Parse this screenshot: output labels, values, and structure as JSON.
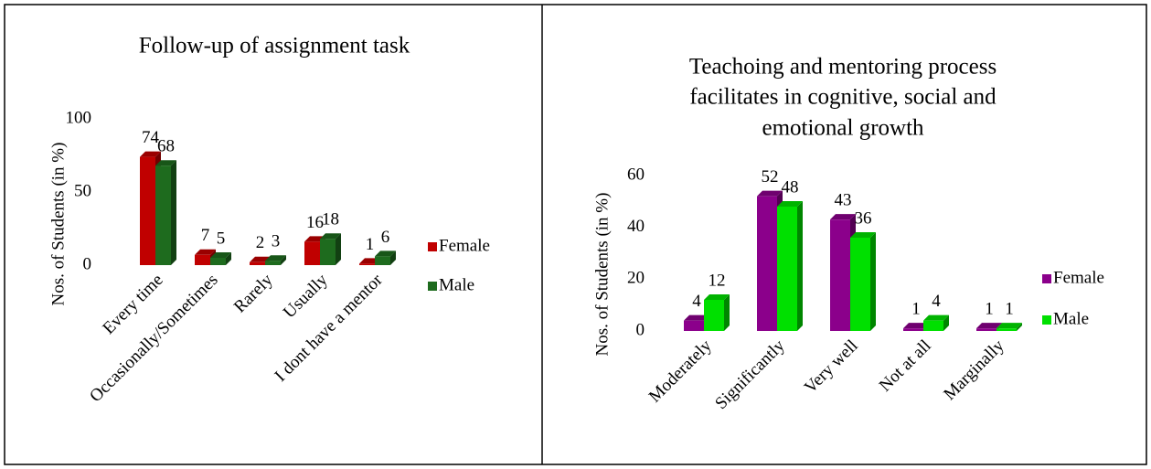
{
  "chart_data": [
    {
      "type": "bar",
      "title": [
        "Follow-up of assignment task"
      ],
      "y_label": "Nos. of Students (in %)",
      "categories": [
        "Every time",
        "Occasionally/Sometimes",
        "Rarely",
        "Usually",
        "I dont have a mentor"
      ],
      "series": [
        {
          "name": "Female",
          "color": "#c00000",
          "values": [
            74,
            7,
            2,
            16,
            1
          ]
        },
        {
          "name": "Male",
          "color": "#1e6b1e",
          "values": [
            68,
            5,
            3,
            18,
            6
          ]
        }
      ],
      "ylim": [
        0,
        100
      ],
      "yticks": [
        0,
        50,
        100
      ],
      "grid": false,
      "legend": "right"
    },
    {
      "type": "bar",
      "title": [
        "Teachoing and mentoring process",
        "facilitates in cognitive, social and",
        "emotional growth"
      ],
      "y_label": "Nos. of Students (in %)",
      "categories": [
        "Moderately",
        "Significantly",
        "Very well",
        "Not at all",
        "Marginally"
      ],
      "series": [
        {
          "name": "Female",
          "color": "#8b008b",
          "values": [
            4,
            52,
            43,
            1,
            1
          ]
        },
        {
          "name": "Male",
          "color": "#00e000",
          "values": [
            12,
            48,
            36,
            4,
            1
          ]
        }
      ],
      "ylim": [
        0,
        60
      ],
      "yticks": [
        0,
        20,
        40,
        60
      ],
      "grid": false,
      "legend": "right"
    }
  ]
}
